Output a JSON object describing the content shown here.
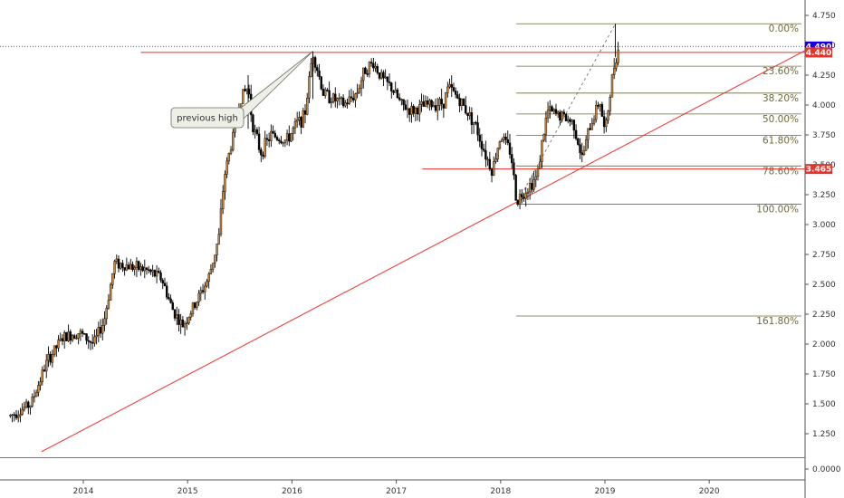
{
  "chart_data": {
    "type": "candlestick",
    "title": "",
    "xlabel": "",
    "ylabel": "",
    "x_range": [
      2013.3,
      2020.95
    ],
    "ylim": [
      -0.15,
      4.85
    ],
    "x_ticks": [
      {
        "value": 2014,
        "label": "2014"
      },
      {
        "value": 2015,
        "label": "2015"
      },
      {
        "value": 2016,
        "label": "2016"
      },
      {
        "value": 2017,
        "label": "2017"
      },
      {
        "value": 2018,
        "label": "2018"
      },
      {
        "value": 2019,
        "label": "2019"
      },
      {
        "value": 2020,
        "label": "2020"
      }
    ],
    "y_ticks": [
      "4.750",
      "4.500",
      "4.250",
      "4.000",
      "3.750",
      "3.500",
      "3.250",
      "3.000",
      "2.750",
      "2.500",
      "2.250",
      "2.000",
      "1.750",
      "1.500",
      "1.250",
      "0.0000"
    ],
    "y_tick_values": [
      4.75,
      4.5,
      4.25,
      4.0,
      3.75,
      3.5,
      3.25,
      3.0,
      2.75,
      2.5,
      2.25,
      2.0,
      1.75,
      1.5,
      1.25,
      0.0
    ],
    "price_path": [
      [
        2013.3,
        1.4
      ],
      [
        2013.5,
        1.5
      ],
      [
        2013.65,
        1.85
      ],
      [
        2013.8,
        2.05
      ],
      [
        2013.95,
        2.1
      ],
      [
        2014.1,
        2.0
      ],
      [
        2014.2,
        2.2
      ],
      [
        2014.3,
        2.68
      ],
      [
        2014.45,
        2.65
      ],
      [
        2014.6,
        2.62
      ],
      [
        2014.75,
        2.55
      ],
      [
        2014.85,
        2.3
      ],
      [
        2014.95,
        2.15
      ],
      [
        2015.05,
        2.3
      ],
      [
        2015.2,
        2.55
      ],
      [
        2015.3,
        2.9
      ],
      [
        2015.35,
        3.4
      ],
      [
        2015.45,
        3.8
      ],
      [
        2015.5,
        4.05
      ],
      [
        2015.58,
        4.15
      ],
      [
        2015.62,
        3.85
      ],
      [
        2015.7,
        3.6
      ],
      [
        2015.8,
        3.75
      ],
      [
        2015.95,
        3.7
      ],
      [
        2016.05,
        3.85
      ],
      [
        2016.12,
        3.9
      ],
      [
        2016.2,
        4.45
      ],
      [
        2016.3,
        4.1
      ],
      [
        2016.4,
        4.05
      ],
      [
        2016.5,
        4.0
      ],
      [
        2016.62,
        4.1
      ],
      [
        2016.7,
        4.3
      ],
      [
        2016.78,
        4.35
      ],
      [
        2016.88,
        4.2
      ],
      [
        2016.95,
        4.15
      ],
      [
        2017.05,
        4.0
      ],
      [
        2017.15,
        3.95
      ],
      [
        2017.3,
        4.0
      ],
      [
        2017.45,
        4.02
      ],
      [
        2017.5,
        4.15
      ],
      [
        2017.6,
        4.05
      ],
      [
        2017.75,
        3.85
      ],
      [
        2017.85,
        3.6
      ],
      [
        2017.92,
        3.45
      ],
      [
        2018.0,
        3.75
      ],
      [
        2018.1,
        3.6
      ],
      [
        2018.15,
        3.2
      ],
      [
        2018.25,
        3.3
      ],
      [
        2018.35,
        3.4
      ],
      [
        2018.4,
        3.7
      ],
      [
        2018.45,
        3.95
      ],
      [
        2018.6,
        3.9
      ],
      [
        2018.7,
        3.85
      ],
      [
        2018.78,
        3.55
      ],
      [
        2018.85,
        3.8
      ],
      [
        2018.95,
        4.05
      ],
      [
        2019.0,
        3.75
      ],
      [
        2019.05,
        4.1
      ],
      [
        2019.1,
        4.4
      ],
      [
        2019.14,
        4.49
      ]
    ],
    "annotations": {
      "current_price_label": "4.490",
      "current_price": 4.49,
      "resistance_label": "4.440",
      "resistance_price": 4.44,
      "resistance_x": [
        2014.55,
        2020.95
      ],
      "support_label": "3.465",
      "support_price": 3.465,
      "support_x": [
        2017.25,
        2020.95
      ],
      "trendline": [
        [
          2013.6,
          1.1
        ],
        [
          2020.95,
          4.47
        ]
      ],
      "previous_high_text": "previous high",
      "previous_high_point": [
        2016.2,
        4.45
      ],
      "fib_low": [
        2018.15,
        3.17
      ],
      "fib_high": [
        2019.1,
        4.68
      ],
      "fib_x_range": [
        2018.15,
        2020.95
      ],
      "fib_levels": [
        {
          "label": "0.00%",
          "price": 4.68
        },
        {
          "label": "23.60%",
          "price": 4.325
        },
        {
          "label": "38.20%",
          "price": 4.1
        },
        {
          "label": "50.00%",
          "price": 3.925
        },
        {
          "label": "61.80%",
          "price": 3.745
        },
        {
          "label": "78.60%",
          "price": 3.49
        },
        {
          "label": "100.00%",
          "price": 3.17
        },
        {
          "label": "161.80%",
          "price": 2.235
        }
      ]
    },
    "colors": {
      "up_candle": "#c8863c",
      "down_candle": "#000000",
      "resistance": "#e8332b",
      "trendline": "#e8332b",
      "fib_line": "#6d6a3a",
      "price_tag_current": "#1a00e0",
      "price_tag_level": "#e8332b",
      "current_price_dotted": "#3b44c9",
      "axis": "#555555"
    }
  }
}
